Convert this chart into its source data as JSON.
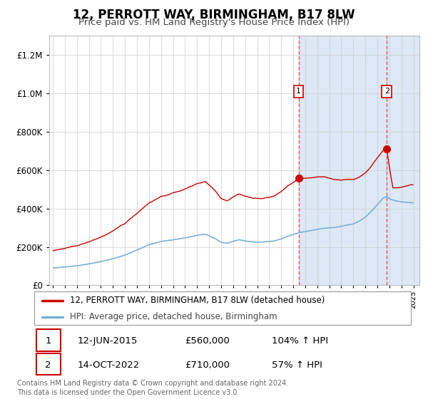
{
  "title": "12, PERROTT WAY, BIRMINGHAM, B17 8LW",
  "subtitle": "Price paid vs. HM Land Registry's House Price Index (HPI)",
  "legend_line1": "12, PERROTT WAY, BIRMINGHAM, B17 8LW (detached house)",
  "legend_line2": "HPI: Average price, detached house, Birmingham",
  "sale1_date": "12-JUN-2015",
  "sale1_price": "£560,000",
  "sale1_hpi": "104% ↑ HPI",
  "sale1_year": 2015.45,
  "sale1_price_val": 560000,
  "sale2_date": "14-OCT-2022",
  "sale2_price": "£710,000",
  "sale2_hpi": "57% ↑ HPI",
  "sale2_year": 2022.79,
  "sale2_price_val": 710000,
  "footnote": "Contains HM Land Registry data © Crown copyright and database right 2024.\nThis data is licensed under the Open Government Licence v3.0.",
  "line_color_property": "#cc0000",
  "line_color_hpi": "#7ab0d4",
  "shade_color": "#dce8f5",
  "title_fontsize": 12,
  "subtitle_fontsize": 9.5,
  "ylim": [
    0,
    1300000
  ],
  "xlim_start": 1994.7,
  "xlim_end": 2025.5
}
